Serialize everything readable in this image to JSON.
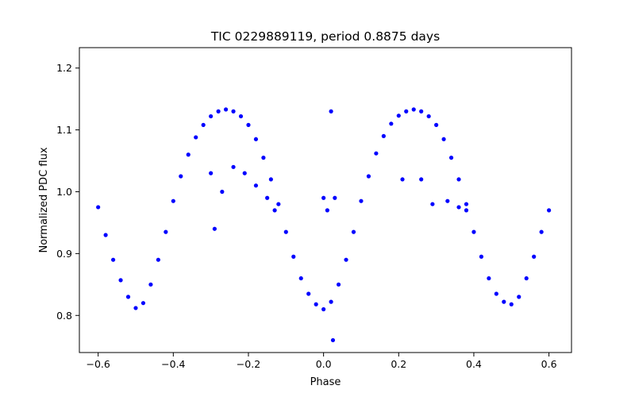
{
  "chart_data": {
    "type": "scatter",
    "title": "TIC 0229889119, period 0.8875 days",
    "xlabel": "Phase",
    "ylabel": "Normalized PDC flux",
    "xlim": [
      -0.65,
      0.66
    ],
    "ylim": [
      0.74,
      1.233
    ],
    "x_ticks": [
      -0.6,
      -0.4,
      -0.2,
      0.0,
      0.2,
      0.4,
      0.6
    ],
    "x_tick_labels": [
      "−0.6",
      "−0.4",
      "−0.2",
      "0.0",
      "0.2",
      "0.4",
      "0.6"
    ],
    "y_ticks": [
      0.8,
      0.9,
      1.0,
      1.1,
      1.2
    ],
    "y_tick_labels": [
      "0.8",
      "0.9",
      "1.0",
      "1.1",
      "1.2"
    ],
    "grid": false,
    "marker_color": "#0000ff",
    "series": [
      {
        "x": [
          -0.6,
          -0.58,
          -0.56,
          -0.54,
          -0.52,
          -0.5,
          -0.48,
          -0.46,
          -0.44,
          -0.42,
          -0.4,
          -0.38,
          -0.36,
          -0.34,
          -0.32,
          -0.3,
          -0.28,
          -0.26,
          -0.24,
          -0.22,
          -0.2,
          -0.18,
          -0.16,
          -0.14,
          -0.12,
          -0.1,
          -0.08,
          -0.06,
          -0.04,
          -0.02,
          0.0,
          0.02,
          0.04,
          0.06,
          0.08,
          0.1,
          0.12,
          0.14,
          0.16,
          0.18,
          0.2,
          0.22,
          0.24,
          0.26,
          0.28,
          0.3,
          0.32,
          0.34,
          0.36,
          0.38,
          0.4,
          0.42,
          0.44,
          0.46,
          0.48,
          0.5,
          0.52,
          0.54,
          0.56,
          0.58,
          0.6,
          -0.3,
          -0.27,
          -0.24,
          -0.21,
          -0.18,
          -0.15,
          -0.13,
          0.02,
          0.03,
          0.21,
          0.26,
          0.29,
          0.33,
          0.36,
          0.38,
          -0.29,
          0.0,
          0.01,
          0.025
        ],
        "y": [
          0.975,
          0.93,
          0.89,
          0.857,
          0.83,
          0.812,
          0.82,
          0.85,
          0.89,
          0.935,
          0.985,
          1.025,
          1.06,
          1.088,
          1.108,
          1.122,
          1.13,
          1.133,
          1.13,
          1.122,
          1.108,
          1.085,
          1.055,
          1.02,
          0.98,
          0.935,
          0.895,
          0.86,
          0.835,
          0.818,
          0.81,
          0.822,
          0.85,
          0.89,
          0.935,
          0.985,
          1.025,
          1.062,
          1.09,
          1.11,
          1.123,
          1.13,
          1.133,
          1.13,
          1.122,
          1.108,
          1.085,
          1.055,
          1.02,
          0.98,
          0.935,
          0.895,
          0.86,
          0.835,
          0.822,
          0.818,
          0.83,
          0.86,
          0.895,
          0.935,
          0.97,
          1.03,
          1.0,
          1.04,
          1.03,
          1.01,
          0.99,
          0.97,
          1.13,
          0.99,
          1.02,
          1.02,
          0.98,
          0.985,
          0.975,
          0.97,
          0.94,
          0.99,
          0.97,
          0.76
        ]
      }
    ]
  }
}
